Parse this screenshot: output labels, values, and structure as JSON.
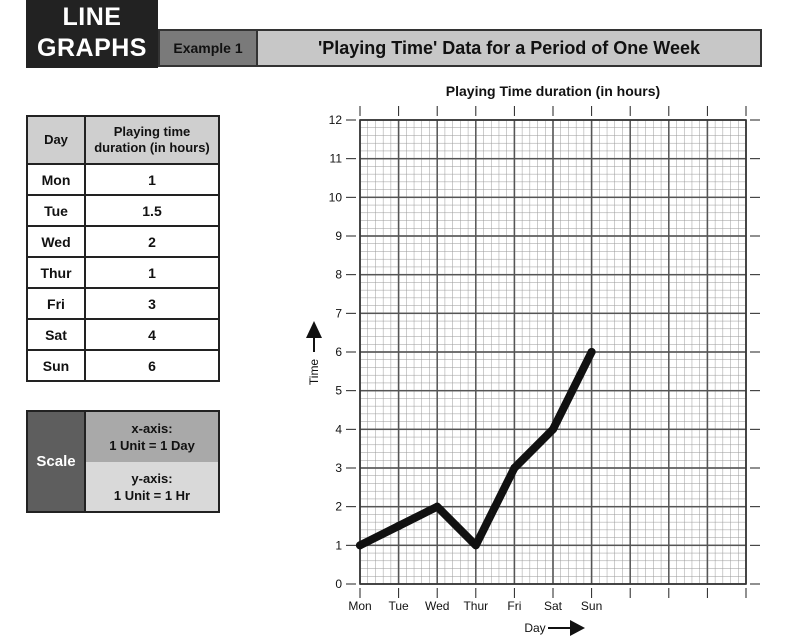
{
  "header": {
    "title_line1": "LINE",
    "title_line2": "GRAPHS",
    "example": "Example 1",
    "heading": "'Playing Time' Data for a Period of One Week"
  },
  "table": {
    "col_day": "Day",
    "col_duration": "Playing time duration (in hours)",
    "rows": [
      {
        "day": "Mon",
        "value": "1"
      },
      {
        "day": "Tue",
        "value": "1.5"
      },
      {
        "day": "Wed",
        "value": "2"
      },
      {
        "day": "Thur",
        "value": "1"
      },
      {
        "day": "Fri",
        "value": "3"
      },
      {
        "day": "Sat",
        "value": "4"
      },
      {
        "day": "Sun",
        "value": "6"
      }
    ]
  },
  "scale": {
    "label": "Scale",
    "x_title": "x-axis:",
    "x_value": "1 Unit = 1 Day",
    "y_title": "y-axis:",
    "y_value": "1 Unit = 1 Hr"
  },
  "chart_data": {
    "type": "line",
    "title": "Playing Time duration (in hours)",
    "xlabel": "Day",
    "ylabel": "Time",
    "categories": [
      "Mon",
      "Tue",
      "Wed",
      "Thur",
      "Fri",
      "Sat",
      "Sun"
    ],
    "series": [
      {
        "name": "Playing time",
        "values": [
          1,
          1.5,
          2,
          1,
          3,
          4,
          6
        ]
      }
    ],
    "ylim": [
      0,
      12
    ],
    "yticks": [
      "0",
      "1",
      "2",
      "3",
      "4",
      "5",
      "6",
      "7",
      "8",
      "9",
      "10",
      "11",
      "12"
    ],
    "x_slots": 10,
    "grid": true,
    "line_color": "#111111",
    "grid_color": "#555555"
  }
}
